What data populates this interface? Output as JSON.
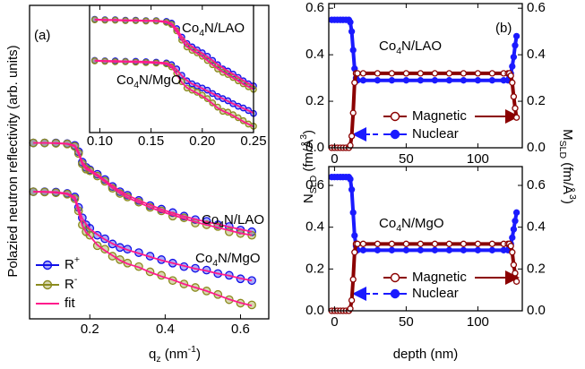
{
  "chart_data": [
    {
      "type": "scatter",
      "xlim": [
        0.04,
        0.675
      ],
      "ylim": [
        -9,
        0
      ],
      "xticks": [
        0.2,
        0.4,
        0.6
      ],
      "xlabel": [
        {
          "text": "q"
        },
        {
          "text": "z",
          "sub": true
        },
        {
          "text": " (nm"
        },
        {
          "text": "-1",
          "sup": true
        },
        {
          "text": ")"
        }
      ],
      "ylabel": [
        {
          "text": "Polazied neutron reflectivity (arb. units)"
        }
      ],
      "panel_label": "(a)",
      "annotations": [
        [
          {
            "text": "Co"
          },
          {
            "text": "4",
            "sub": true
          },
          {
            "text": "N/LAO"
          }
        ],
        [
          {
            "text": "Co"
          },
          {
            "text": "4",
            "sub": true
          },
          {
            "text": "N/MgO"
          }
        ]
      ],
      "x": [
        0.05,
        0.08,
        0.11,
        0.14,
        0.16,
        0.17,
        0.18,
        0.19,
        0.2,
        0.22,
        0.24,
        0.26,
        0.28,
        0.3,
        0.33,
        0.36,
        0.39,
        0.42,
        0.45,
        0.48,
        0.51,
        0.54,
        0.57,
        0.6,
        0.63
      ],
      "series": [
        {
          "name": [
            {
              "text": "R"
            },
            {
              "text": "+",
              "sup": true
            }
          ],
          "color": "#1010e8",
          "mode": "markers",
          "values": [
            -3.95,
            -3.95,
            -3.95,
            -3.97,
            -4.02,
            -4.2,
            -4.5,
            -4.65,
            -4.72,
            -4.85,
            -5.0,
            -5.2,
            -5.35,
            -5.45,
            -5.6,
            -5.75,
            -5.85,
            -5.95,
            -6.05,
            -6.15,
            -6.2,
            -6.3,
            -6.35,
            -6.45,
            -6.5
          ]
        },
        {
          "name": [
            {
              "text": "R"
            },
            {
              "text": "-",
              "sup": true
            }
          ],
          "color": "#8b8b1e",
          "mode": "markers",
          "values": [
            -3.95,
            -3.95,
            -3.96,
            -3.98,
            -4.05,
            -4.25,
            -4.55,
            -4.7,
            -4.75,
            -4.9,
            -5.05,
            -5.25,
            -5.4,
            -5.5,
            -5.65,
            -5.8,
            -5.9,
            -6.05,
            -6.1,
            -6.25,
            -6.3,
            -6.35,
            -6.5,
            -6.55,
            -6.6
          ]
        },
        {
          "name": [
            {
              "text": "fit"
            }
          ],
          "color": "#ff1a8c",
          "mode": "line",
          "values": [
            -3.95,
            -3.95,
            -3.95,
            -3.97,
            -4.02,
            -4.2,
            -4.5,
            -4.64,
            -4.72,
            -4.86,
            -5.02,
            -5.18,
            -5.33,
            -5.45,
            -5.6,
            -5.73,
            -5.86,
            -5.96,
            -6.06,
            -6.14,
            -6.22,
            -6.28,
            -6.36,
            -6.43,
            -6.5
          ]
        },
        {
          "name": [
            {
              "text": "fit"
            }
          ],
          "color": "#ff1a8c",
          "mode": "line",
          "values": [
            -3.95,
            -3.95,
            -3.96,
            -3.98,
            -4.05,
            -4.26,
            -4.56,
            -4.7,
            -4.76,
            -4.9,
            -5.06,
            -5.24,
            -5.39,
            -5.52,
            -5.66,
            -5.8,
            -5.92,
            -6.02,
            -6.12,
            -6.22,
            -6.3,
            -6.38,
            -6.46,
            -6.54,
            -6.6
          ]
        },
        {
          "name": [
            {
              "text": "R"
            },
            {
              "text": "+",
              "sup": true
            }
          ],
          "color": "#1010e8",
          "mode": "markers",
          "values": [
            -5.35,
            -5.35,
            -5.36,
            -5.4,
            -5.5,
            -5.8,
            -6.1,
            -6.3,
            -6.4,
            -6.6,
            -6.7,
            -6.85,
            -6.95,
            -7.0,
            -7.1,
            -7.2,
            -7.3,
            -7.4,
            -7.5,
            -7.55,
            -7.6,
            -7.7,
            -7.75,
            -7.85,
            -7.9
          ]
        },
        {
          "name": [
            {
              "text": "R"
            },
            {
              "text": "-",
              "sup": true
            }
          ],
          "color": "#8b8b1e",
          "mode": "markers",
          "values": [
            -5.35,
            -5.36,
            -5.38,
            -5.42,
            -5.55,
            -5.9,
            -6.3,
            -6.5,
            -6.6,
            -6.9,
            -7.0,
            -7.2,
            -7.3,
            -7.4,
            -7.5,
            -7.65,
            -7.75,
            -7.9,
            -8.0,
            -8.1,
            -8.2,
            -8.3,
            -8.45,
            -8.55,
            -8.6
          ]
        },
        {
          "name": [
            {
              "text": "fit"
            }
          ],
          "color": "#ff1a8c",
          "mode": "line",
          "values": [
            -5.35,
            -5.35,
            -5.36,
            -5.4,
            -5.5,
            -5.82,
            -6.12,
            -6.28,
            -6.42,
            -6.58,
            -6.72,
            -6.84,
            -6.94,
            -7.02,
            -7.12,
            -7.22,
            -7.32,
            -7.4,
            -7.48,
            -7.56,
            -7.62,
            -7.7,
            -7.76,
            -7.84,
            -7.9
          ]
        },
        {
          "name": [
            {
              "text": "fit"
            }
          ],
          "color": "#ff1a8c",
          "mode": "line",
          "values": [
            -5.35,
            -5.36,
            -5.38,
            -5.42,
            -5.56,
            -5.92,
            -6.32,
            -6.52,
            -6.62,
            -6.88,
            -7.04,
            -7.18,
            -7.32,
            -7.42,
            -7.52,
            -7.66,
            -7.78,
            -7.88,
            -8.0,
            -8.1,
            -8.2,
            -8.32,
            -8.44,
            -8.54,
            -8.62
          ]
        }
      ]
    },
    {
      "type": "scatter",
      "xlim": [
        0.09,
        0.25
      ],
      "ylim": [
        -3,
        0
      ],
      "xticks": [
        {
          "value": 0.1,
          "label": "0.10"
        },
        0.15,
        {
          "value": 0.2,
          "label": "0.20"
        },
        0.25
      ],
      "annotations": [
        [
          {
            "text": "Co"
          },
          {
            "text": "4",
            "sub": true
          },
          {
            "text": "N/LAO"
          }
        ],
        [
          {
            "text": "Co"
          },
          {
            "text": "4",
            "sub": true
          },
          {
            "text": "N/MgO"
          }
        ]
      ],
      "x": [
        0.095,
        0.105,
        0.115,
        0.125,
        0.135,
        0.145,
        0.155,
        0.165,
        0.17,
        0.175,
        0.18,
        0.185,
        0.19,
        0.195,
        0.2,
        0.205,
        0.21,
        0.215,
        0.22,
        0.225,
        0.23,
        0.235,
        0.24,
        0.245,
        0.25
      ],
      "series": [
        {
          "color": "#1010e8",
          "mode": "markers",
          "values": [
            -0.33,
            -0.34,
            -0.34,
            -0.35,
            -0.35,
            -0.36,
            -0.36,
            -0.38,
            -0.42,
            -0.55,
            -0.75,
            -0.9,
            -0.98,
            -1.05,
            -1.12,
            -1.2,
            -1.3,
            -1.4,
            -1.5,
            -1.55,
            -1.62,
            -1.7,
            -1.78,
            -1.85,
            -1.9
          ]
        },
        {
          "color": "#8b8b1e",
          "mode": "markers",
          "values": [
            -0.34,
            -0.35,
            -0.35,
            -0.36,
            -0.36,
            -0.37,
            -0.37,
            -0.4,
            -0.45,
            -0.6,
            -0.82,
            -0.98,
            -1.06,
            -1.12,
            -1.2,
            -1.3,
            -1.4,
            -1.5,
            -1.58,
            -1.63,
            -1.7,
            -1.78,
            -1.85,
            -1.92,
            -1.98
          ]
        },
        {
          "color": "#ff1a8c",
          "mode": "line",
          "values": [
            -0.33,
            -0.34,
            -0.34,
            -0.35,
            -0.35,
            -0.36,
            -0.36,
            -0.38,
            -0.43,
            -0.56,
            -0.74,
            -0.88,
            -0.97,
            -1.05,
            -1.13,
            -1.21,
            -1.3,
            -1.39,
            -1.47,
            -1.55,
            -1.62,
            -1.69,
            -1.77,
            -1.84,
            -1.9
          ]
        },
        {
          "color": "#ff1a8c",
          "mode": "line",
          "values": [
            -0.34,
            -0.35,
            -0.35,
            -0.36,
            -0.36,
            -0.37,
            -0.37,
            -0.4,
            -0.46,
            -0.62,
            -0.82,
            -0.97,
            -1.06,
            -1.13,
            -1.21,
            -1.3,
            -1.4,
            -1.49,
            -1.57,
            -1.64,
            -1.71,
            -1.78,
            -1.86,
            -1.92,
            -1.98
          ]
        },
        {
          "color": "#1010e8",
          "mode": "markers",
          "values": [
            -1.3,
            -1.31,
            -1.31,
            -1.32,
            -1.32,
            -1.33,
            -1.34,
            -1.36,
            -1.4,
            -1.5,
            -1.65,
            -1.78,
            -1.85,
            -1.9,
            -1.95,
            -2.0,
            -2.08,
            -2.15,
            -2.2,
            -2.25,
            -2.32,
            -2.38,
            -2.42,
            -2.48,
            -2.55
          ]
        },
        {
          "color": "#8b8b1e",
          "mode": "markers",
          "values": [
            -1.31,
            -1.32,
            -1.33,
            -1.33,
            -1.34,
            -1.35,
            -1.36,
            -1.38,
            -1.45,
            -1.6,
            -1.8,
            -1.95,
            -2.0,
            -2.05,
            -2.12,
            -2.2,
            -2.3,
            -2.4,
            -2.5,
            -2.52,
            -2.58,
            -2.65,
            -2.72,
            -2.8,
            -2.85
          ]
        },
        {
          "color": "#ff1a8c",
          "mode": "line",
          "values": [
            -1.3,
            -1.31,
            -1.31,
            -1.32,
            -1.32,
            -1.33,
            -1.34,
            -1.36,
            -1.41,
            -1.52,
            -1.66,
            -1.77,
            -1.85,
            -1.9,
            -1.96,
            -2.02,
            -2.08,
            -2.14,
            -2.2,
            -2.26,
            -2.32,
            -2.37,
            -2.43,
            -2.48,
            -2.54
          ]
        },
        {
          "color": "#ff1a8c",
          "mode": "line",
          "values": [
            -1.31,
            -1.32,
            -1.33,
            -1.33,
            -1.34,
            -1.35,
            -1.36,
            -1.38,
            -1.46,
            -1.62,
            -1.82,
            -1.94,
            -2.01,
            -2.07,
            -2.14,
            -2.22,
            -2.32,
            -2.42,
            -2.49,
            -2.54,
            -2.6,
            -2.67,
            -2.74,
            -2.8,
            -2.86
          ]
        }
      ]
    },
    {
      "type": "line",
      "xlim": [
        -4,
        131
      ],
      "ylim": [
        0,
        0.62
      ],
      "y2lim": [
        0,
        0.62
      ],
      "xticks": [
        0,
        50,
        100
      ],
      "yticks": [
        {
          "value": 0,
          "label": "0.0"
        },
        0.2,
        0.4,
        0.6
      ],
      "y2ticks": [
        {
          "value": 0,
          "label": "0.0"
        },
        0.2,
        0.4,
        0.6
      ],
      "ylabel": [
        {
          "text": "N"
        },
        {
          "text": "SLD",
          "sub": true
        },
        {
          "text": " (fm/Å"
        },
        {
          "text": "3",
          "sup": true
        },
        {
          "text": ")"
        }
      ],
      "ylabel_color": "#1a1aff",
      "y2label": [
        {
          "text": "M"
        },
        {
          "text": "SLD",
          "sub": true
        },
        {
          "text": " (fm/Å"
        },
        {
          "text": "3",
          "sup": true
        },
        {
          "text": ")"
        }
      ],
      "y2label_color": "#8b0000",
      "panel_label": "(b)",
      "annotations": [
        [
          {
            "text": "Co"
          },
          {
            "text": "4",
            "sub": true
          },
          {
            "text": "N/LAO"
          }
        ]
      ],
      "x": [
        -2,
        0,
        2,
        4,
        6,
        8,
        10,
        11,
        12,
        13,
        14,
        15,
        16,
        20,
        30,
        40,
        50,
        60,
        70,
        80,
        90,
        100,
        110,
        118,
        121,
        122,
        123,
        124,
        125,
        126,
        127
      ],
      "series": [
        {
          "name": [
            {
              "text": "Nuclear"
            }
          ],
          "color": "#1a1aff",
          "marker": "filled",
          "values": [
            0.55,
            0.55,
            0.55,
            0.55,
            0.55,
            0.55,
            0.55,
            0.54,
            0.5,
            0.42,
            0.34,
            0.3,
            0.29,
            0.29,
            0.29,
            0.29,
            0.29,
            0.29,
            0.29,
            0.29,
            0.29,
            0.29,
            0.29,
            0.29,
            0.29,
            0.3,
            0.32,
            0.35,
            0.39,
            0.44,
            0.48
          ]
        },
        {
          "name": [
            {
              "text": "Magnetic"
            }
          ],
          "color": "#8b0000",
          "marker": "open",
          "axis": "y2",
          "values": [
            0,
            0,
            0,
            0,
            0,
            0,
            0,
            0.01,
            0.05,
            0.15,
            0.28,
            0.32,
            0.32,
            0.32,
            0.32,
            0.32,
            0.32,
            0.32,
            0.32,
            0.32,
            0.32,
            0.32,
            0.32,
            0.32,
            0.32,
            0.32,
            0.31,
            0.28,
            0.22,
            0.17,
            0.13
          ]
        }
      ]
    },
    {
      "type": "line",
      "xlim": [
        -4,
        131
      ],
      "ylim": [
        0,
        0.69
      ],
      "y2lim": [
        0,
        0.69
      ],
      "xticks": [
        0,
        50,
        100
      ],
      "yticks": [
        {
          "value": 0,
          "label": "0.0"
        },
        0.2,
        0.4,
        0.6
      ],
      "y2ticks": [
        {
          "value": 0,
          "label": "0.0"
        },
        0.2,
        0.4,
        0.6
      ],
      "xlabel": [
        {
          "text": "depth (nm)"
        }
      ],
      "annotations": [
        [
          {
            "text": "Co"
          },
          {
            "text": "4",
            "sub": true
          },
          {
            "text": "N/MgO"
          }
        ]
      ],
      "x": [
        -2,
        0,
        2,
        4,
        6,
        8,
        10,
        11,
        12,
        13,
        14,
        15,
        16,
        20,
        30,
        40,
        50,
        60,
        70,
        80,
        90,
        100,
        110,
        118,
        121,
        122,
        123,
        124,
        125,
        126,
        127
      ],
      "series": [
        {
          "name": [
            {
              "text": "Nuclear"
            }
          ],
          "color": "#1a1aff",
          "marker": "filled",
          "values": [
            0.64,
            0.64,
            0.64,
            0.64,
            0.64,
            0.64,
            0.64,
            0.63,
            0.58,
            0.47,
            0.36,
            0.31,
            0.29,
            0.29,
            0.29,
            0.29,
            0.29,
            0.29,
            0.29,
            0.29,
            0.29,
            0.29,
            0.29,
            0.29,
            0.29,
            0.3,
            0.32,
            0.35,
            0.39,
            0.43,
            0.47
          ]
        },
        {
          "name": [
            {
              "text": "Magnetic"
            }
          ],
          "color": "#8b0000",
          "marker": "open",
          "axis": "y2",
          "values": [
            0,
            0,
            0,
            0,
            0,
            0,
            0,
            0.01,
            0.05,
            0.15,
            0.28,
            0.32,
            0.32,
            0.32,
            0.32,
            0.32,
            0.32,
            0.32,
            0.32,
            0.32,
            0.32,
            0.32,
            0.32,
            0.32,
            0.32,
            0.32,
            0.31,
            0.28,
            0.22,
            0.18,
            0.14
          ]
        }
      ]
    }
  ]
}
